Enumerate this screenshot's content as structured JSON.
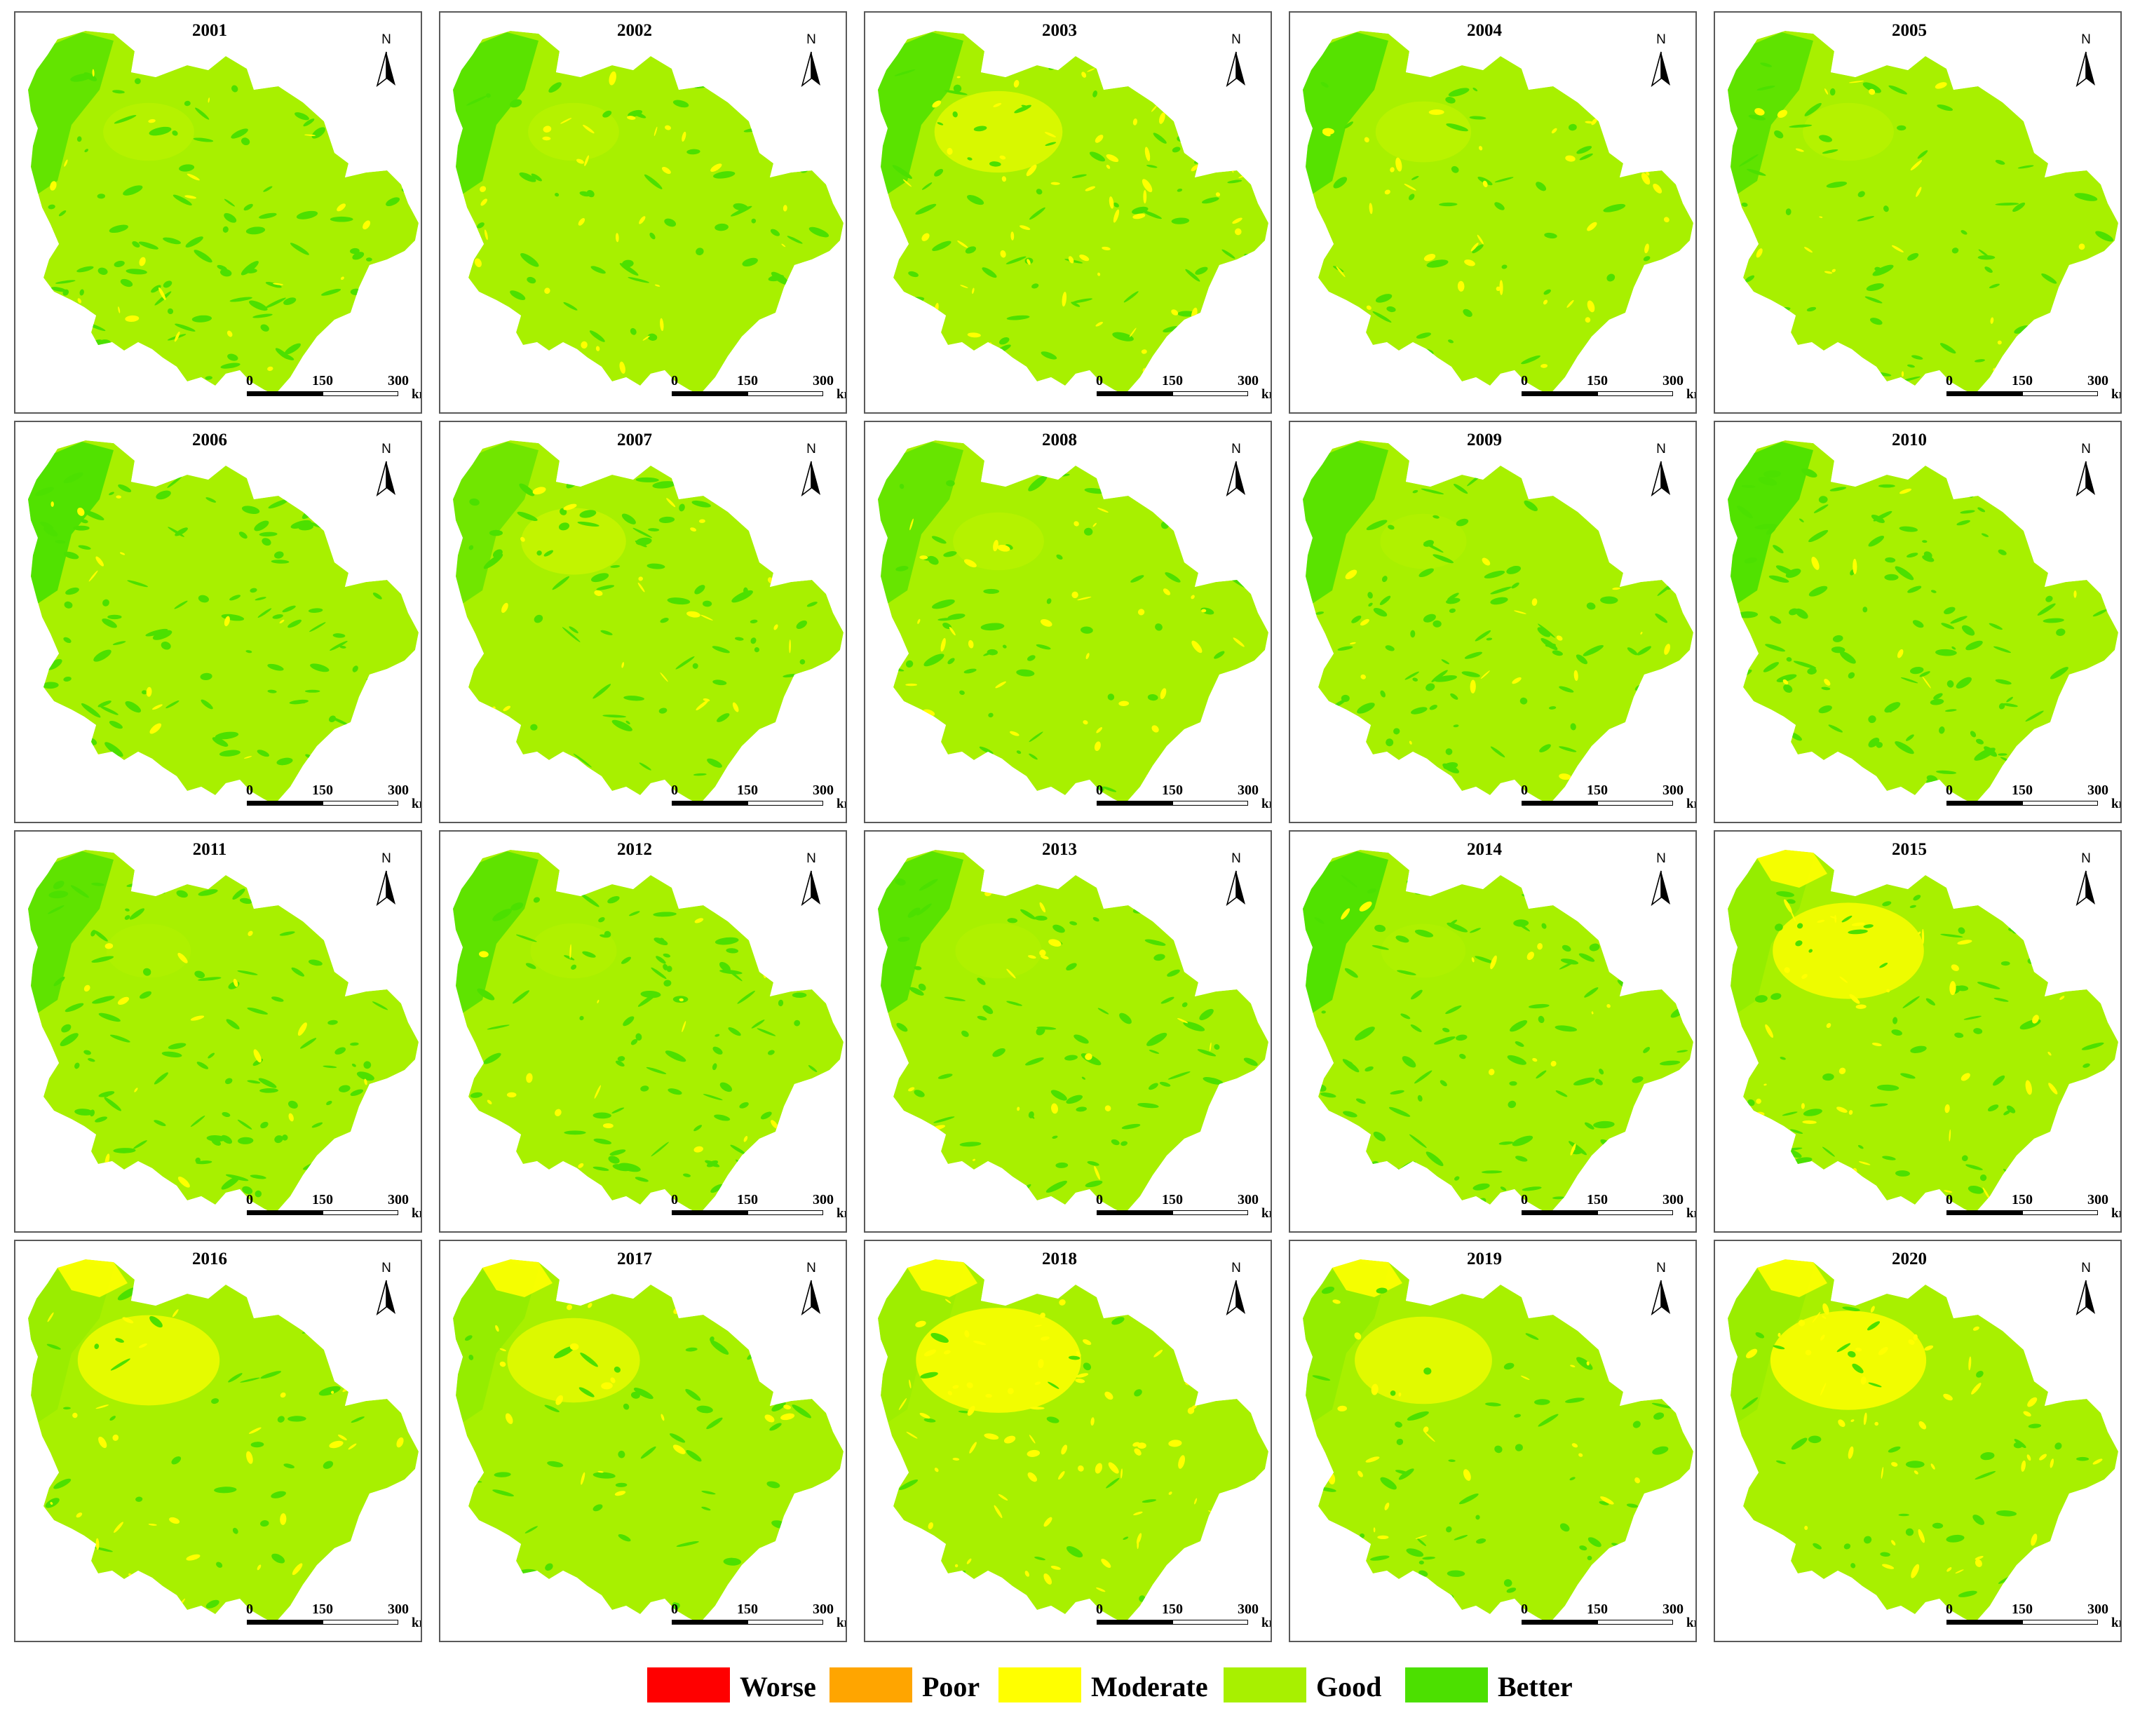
{
  "panels": [
    {
      "year": "2001",
      "profile": {
        "better": 0.3,
        "moderate": 0.05,
        "nwDark": 0.75,
        "nYellow": 0.15
      }
    },
    {
      "year": "2002",
      "profile": {
        "better": 0.18,
        "moderate": 0.08,
        "nwDark": 0.85,
        "nYellow": 0.15
      }
    },
    {
      "year": "2003",
      "profile": {
        "better": 0.2,
        "moderate": 0.14,
        "nwDark": 0.85,
        "nYellow": 0.55
      }
    },
    {
      "year": "2004",
      "profile": {
        "better": 0.15,
        "moderate": 0.1,
        "nwDark": 0.9,
        "nYellow": 0.2
      }
    },
    {
      "year": "2005",
      "profile": {
        "better": 0.18,
        "moderate": 0.07,
        "nwDark": 0.8,
        "nYellow": 0.15
      }
    },
    {
      "year": "2006",
      "profile": {
        "better": 0.32,
        "moderate": 0.04,
        "nwDark": 0.95,
        "nYellow": 0.05
      }
    },
    {
      "year": "2007",
      "profile": {
        "better": 0.24,
        "moderate": 0.07,
        "nwDark": 0.6,
        "nYellow": 0.3
      }
    },
    {
      "year": "2008",
      "profile": {
        "better": 0.18,
        "moderate": 0.09,
        "nwDark": 0.7,
        "nYellow": 0.15
      }
    },
    {
      "year": "2009",
      "profile": {
        "better": 0.3,
        "moderate": 0.05,
        "nwDark": 0.85,
        "nYellow": 0.1
      }
    },
    {
      "year": "2010",
      "profile": {
        "better": 0.36,
        "moderate": 0.03,
        "nwDark": 0.95,
        "nYellow": 0.05
      }
    },
    {
      "year": "2011",
      "profile": {
        "better": 0.3,
        "moderate": 0.04,
        "nwDark": 0.8,
        "nYellow": 0.08
      }
    },
    {
      "year": "2012",
      "profile": {
        "better": 0.28,
        "moderate": 0.05,
        "nwDark": 0.8,
        "nYellow": 0.1
      }
    },
    {
      "year": "2013",
      "profile": {
        "better": 0.26,
        "moderate": 0.05,
        "nwDark": 0.85,
        "nYellow": 0.1
      }
    },
    {
      "year": "2014",
      "profile": {
        "better": 0.3,
        "moderate": 0.04,
        "nwDark": 0.95,
        "nYellow": 0.08
      }
    },
    {
      "year": "2015",
      "profile": {
        "better": 0.22,
        "moderate": 0.12,
        "nwDark": 0.2,
        "nYellow": 0.8
      }
    },
    {
      "year": "2016",
      "profile": {
        "better": 0.12,
        "moderate": 0.1,
        "nwDark": 0.15,
        "nYellow": 0.7
      }
    },
    {
      "year": "2017",
      "profile": {
        "better": 0.14,
        "moderate": 0.07,
        "nwDark": 0.2,
        "nYellow": 0.6
      }
    },
    {
      "year": "2018",
      "profile": {
        "better": 0.06,
        "moderate": 0.2,
        "nwDark": 0.1,
        "nYellow": 0.95
      }
    },
    {
      "year": "2019",
      "profile": {
        "better": 0.16,
        "moderate": 0.06,
        "nwDark": 0.2,
        "nYellow": 0.65
      }
    },
    {
      "year": "2020",
      "profile": {
        "better": 0.12,
        "moderate": 0.13,
        "nwDark": 0.15,
        "nYellow": 0.85
      }
    }
  ],
  "north_arrow": {
    "letter": "N"
  },
  "scale_bar": {
    "ticks": [
      "0",
      "150",
      "300"
    ],
    "unit": "km"
  },
  "legend": [
    {
      "label": "Worse",
      "color": "#ff0000"
    },
    {
      "label": "Poor",
      "color": "#ffa500"
    },
    {
      "label": "Moderate",
      "color": "#ffff00"
    },
    {
      "label": "Good",
      "color": "#a8f000"
    },
    {
      "label": "Better",
      "color": "#4ce000"
    }
  ]
}
